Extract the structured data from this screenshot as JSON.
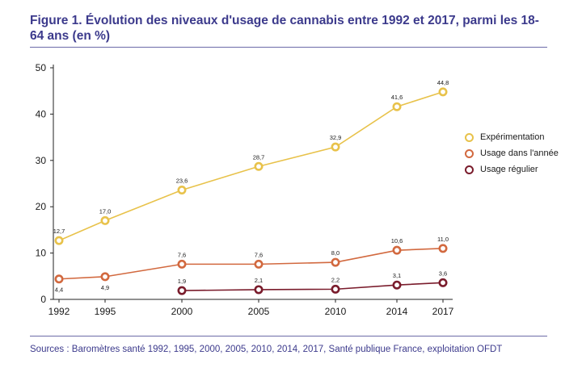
{
  "figure": {
    "title": "Figure 1. Évolution des niveaux d'usage de cannabis entre 1992 et 2017, parmi les 18-64 ans (en %)",
    "sources": "Sources : Baromètres santé 1992, 1995, 2000, 2005, 2010, 2014, 2017, Santé publique France, exploitation OFDT"
  },
  "chart_data": {
    "type": "line",
    "title": "Figure 1. Évolution des niveaux d'usage de cannabis entre 1992 et 2017, parmi les 18-64 ans (en %)",
    "xlabel": "",
    "ylabel": "",
    "x_ticks": [
      1992,
      1995,
      2000,
      2005,
      2010,
      2014,
      2017
    ],
    "y_ticks": [
      0,
      10,
      20,
      30,
      40,
      50
    ],
    "ylim": [
      0,
      50
    ],
    "xlim": [
      1992,
      2017
    ],
    "grid": false,
    "legend_position": "right",
    "series": [
      {
        "name": "Expérimentation",
        "color": "#e8c24a",
        "x": [
          1992,
          1995,
          2000,
          2005,
          2010,
          2014,
          2017
        ],
        "values": [
          12.7,
          17.0,
          23.6,
          28.7,
          32.9,
          41.6,
          44.8
        ],
        "labels": [
          "12,7",
          "17,0",
          "23,6",
          "28,7",
          "32,9",
          "41,6",
          "44,8"
        ],
        "label_position": "above"
      },
      {
        "name": "Usage dans l'année",
        "color": "#d2693f",
        "x": [
          1992,
          1995,
          2000,
          2005,
          2010,
          2014,
          2017
        ],
        "values": [
          4.4,
          4.9,
          7.6,
          7.6,
          8.0,
          10.6,
          11.0
        ],
        "labels": [
          "4,4",
          "4,9",
          "7,6",
          "7,6",
          "8,0",
          "10,6",
          "11,0"
        ],
        "label_position": [
          "below",
          "below",
          "above",
          "above",
          "above",
          "above",
          "above"
        ]
      },
      {
        "name": "Usage régulier",
        "color": "#7a1c2c",
        "x": [
          2000,
          2005,
          2010,
          2014,
          2017
        ],
        "values": [
          1.9,
          2.1,
          2.2,
          3.1,
          3.6
        ],
        "labels": [
          "1,9",
          "2,1",
          "2,2",
          "3,1",
          "3,6"
        ],
        "label_position": "above"
      }
    ]
  }
}
